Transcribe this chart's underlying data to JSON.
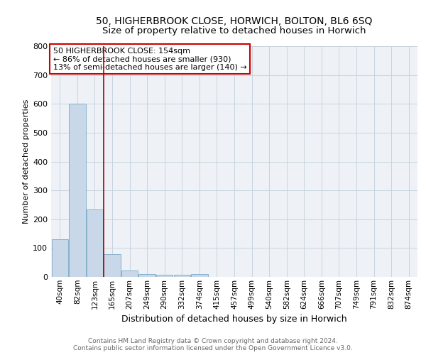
{
  "title": "50, HIGHERBROOK CLOSE, HORWICH, BOLTON, BL6 6SQ",
  "subtitle": "Size of property relative to detached houses in Horwich",
  "xlabel": "Distribution of detached houses by size in Horwich",
  "ylabel": "Number of detached properties",
  "footer_line1": "Contains HM Land Registry data © Crown copyright and database right 2024.",
  "footer_line2": "Contains public sector information licensed under the Open Government Licence v3.0.",
  "annotation_line1": "50 HIGHERBROOK CLOSE: 154sqm",
  "annotation_line2": "← 86% of detached houses are smaller (930)",
  "annotation_line3": "13% of semi-detached houses are larger (140) →",
  "bar_labels": [
    "40sqm",
    "82sqm",
    "123sqm",
    "165sqm",
    "207sqm",
    "249sqm",
    "290sqm",
    "332sqm",
    "374sqm",
    "415sqm",
    "457sqm",
    "499sqm",
    "540sqm",
    "582sqm",
    "624sqm",
    "666sqm",
    "707sqm",
    "749sqm",
    "791sqm",
    "832sqm",
    "874sqm"
  ],
  "bar_values": [
    130,
    600,
    235,
    80,
    23,
    10,
    8,
    8,
    10,
    0,
    0,
    0,
    0,
    0,
    0,
    0,
    0,
    0,
    0,
    0,
    0
  ],
  "bar_color": "#c8d8e8",
  "bar_edgecolor": "#7aa8c8",
  "vline_x": 2.5,
  "vline_color": "#aa0000",
  "ylim": [
    0,
    800
  ],
  "yticks": [
    0,
    100,
    200,
    300,
    400,
    500,
    600,
    700,
    800
  ],
  "grid_color": "#c8d4de",
  "bg_color": "#eef2f7",
  "title_fontsize": 10,
  "subtitle_fontsize": 9.5,
  "xlabel_fontsize": 9,
  "ylabel_fontsize": 8,
  "tick_fontsize": 8,
  "xtick_fontsize": 7.5,
  "footer_fontsize": 6.5,
  "annotation_fontsize": 8
}
